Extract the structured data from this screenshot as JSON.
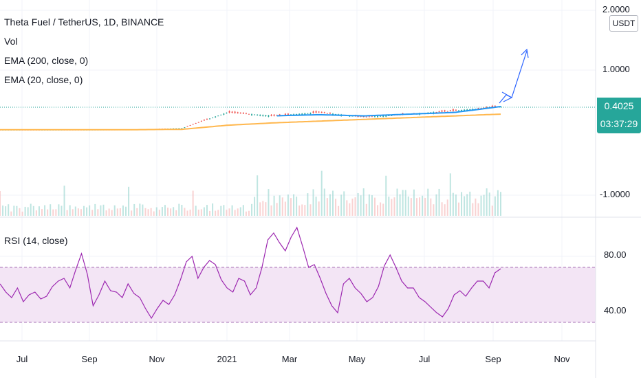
{
  "chart_title": "Theta Fuel / TetherUS, 1D, BINANCE",
  "indicators": {
    "vol": "Vol",
    "ema200": "EMA (200, close, 0)",
    "ema20": "EMA (20, close, 0)",
    "rsi": "RSI (14, close)"
  },
  "price_scale": {
    "unit": "USDT",
    "ticks": [
      "2.0000",
      "1.0000",
      "-1.0000"
    ],
    "last_price": "0.4025",
    "countdown": "03:37:29"
  },
  "rsi_scale": {
    "ticks": [
      "80.00",
      "40.00"
    ]
  },
  "time_axis": {
    "labels": [
      "Jul",
      "Sep",
      "Nov",
      "2021",
      "Mar",
      "May",
      "Jul",
      "Sep",
      "Nov"
    ]
  },
  "colors": {
    "up": "#26a69a",
    "down": "#ef5350",
    "ema20": "#2196f3",
    "ema200": "#ffb74d",
    "rsi": "#9c27b0",
    "rsi_band": "#f3e5f5",
    "projection": "#2962ff"
  },
  "chart_data": [
    {
      "type": "line",
      "name": "price-panel",
      "x_labels": [
        "Jul",
        "Sep",
        "Nov",
        "2021",
        "Mar",
        "May",
        "Jul",
        "Sep"
      ],
      "series": [
        {
          "values": [
            0.003,
            0.003,
            0.004,
            0.006,
            0.03,
            0.3,
            0.24,
            0.3,
            0.22,
            0.27,
            0.33,
            0.4
          ]
        },
        {
          "values": [
            0.003,
            0.003,
            0.004,
            0.005,
            0.02,
            0.25,
            0.24,
            0.26,
            0.24,
            0.27,
            0.3,
            0.4
          ]
        },
        {
          "values": [
            0.002,
            0.003,
            0.003,
            0.004,
            0.01,
            0.08,
            0.12,
            0.15,
            0.18,
            0.21,
            0.24,
            0.27
          ]
        }
      ],
      "last_price": 0.4025,
      "yaxis_ticks": [
        2.0,
        1.0,
        -1.0
      ]
    },
    {
      "type": "line",
      "name": "rsi-panel",
      "series": [
        {
          "values": [
            58,
            52,
            48,
            55,
            45,
            50,
            52,
            47,
            49,
            56,
            60,
            62,
            55,
            68,
            80,
            65,
            42,
            50,
            60,
            53,
            52,
            48,
            58,
            51,
            48,
            40,
            33,
            40,
            46,
            43,
            50,
            61,
            74,
            78,
            62,
            70,
            75,
            72,
            61,
            55,
            52,
            62,
            60,
            50,
            55,
            70,
            90,
            95,
            88,
            82,
            92,
            99,
            85,
            70,
            72,
            62,
            51,
            42,
            37,
            58,
            62,
            55,
            51,
            45,
            48,
            56,
            71,
            79,
            70,
            60,
            55,
            55,
            48,
            45,
            41,
            37,
            34,
            40,
            50,
            53,
            49,
            55,
            60,
            60,
            55,
            66,
            69
          ]
        }
      ],
      "overbought": 70,
      "oversold": 30,
      "yaxis_ticks": [
        80,
        40
      ]
    }
  ]
}
